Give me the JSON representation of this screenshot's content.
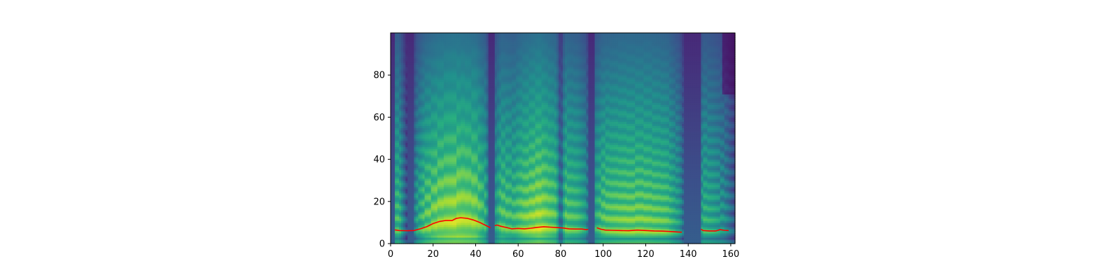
{
  "chart_data": {
    "type": "heatmap",
    "subtype": "mel-spectrogram with pitch contour overlay",
    "colormap": "viridis",
    "title": "",
    "xlabel": "",
    "ylabel": "",
    "xlim": [
      0,
      162
    ],
    "ylim": [
      0,
      100
    ],
    "x_ticks": [
      0,
      20,
      40,
      60,
      80,
      100,
      120,
      140,
      160
    ],
    "y_ticks": [
      0,
      20,
      40,
      60,
      80
    ],
    "grid": false,
    "legend": "none",
    "line_color": "#ff0000",
    "pitch_contour": [
      [
        [
          2,
          6.5
        ],
        [
          4,
          6.2
        ],
        [
          8,
          6.1
        ],
        [
          11,
          6.2
        ],
        [
          14,
          7.0
        ],
        [
          17,
          8.0
        ],
        [
          20,
          9.5
        ],
        [
          23,
          10.5
        ],
        [
          26,
          11.0
        ],
        [
          29,
          11.0
        ],
        [
          31,
          12.0
        ],
        [
          33,
          12.3
        ],
        [
          36,
          12.0
        ],
        [
          39,
          11.2
        ],
        [
          42,
          10.0
        ],
        [
          45,
          8.5
        ],
        [
          47,
          7.5
        ]
      ],
      [
        [
          49,
          8.5
        ],
        [
          50,
          8.8
        ],
        [
          52,
          8.2
        ],
        [
          55,
          7.5
        ],
        [
          57,
          7.0
        ],
        [
          60,
          7.2
        ],
        [
          63,
          7.0
        ],
        [
          66,
          7.3
        ],
        [
          69,
          7.7
        ],
        [
          72,
          8.0
        ],
        [
          75,
          7.8
        ],
        [
          78,
          7.6
        ],
        [
          81,
          7.4
        ],
        [
          84,
          7.0
        ],
        [
          87,
          6.9
        ],
        [
          90,
          6.9
        ],
        [
          92,
          6.6
        ],
        [
          93,
          6.8
        ]
      ],
      [
        [
          97,
          7.5
        ],
        [
          99,
          6.8
        ],
        [
          101,
          6.4
        ],
        [
          104,
          6.3
        ],
        [
          108,
          6.2
        ],
        [
          112,
          6.1
        ],
        [
          116,
          6.4
        ],
        [
          120,
          6.2
        ],
        [
          124,
          6.0
        ],
        [
          128,
          5.9
        ],
        [
          132,
          5.7
        ],
        [
          135,
          5.5
        ],
        [
          137,
          5.4
        ]
      ],
      [
        [
          146,
          6.8
        ],
        [
          147,
          6.2
        ],
        [
          150,
          6.0
        ],
        [
          153,
          6.0
        ],
        [
          155,
          6.6
        ],
        [
          157,
          6.3
        ],
        [
          159,
          6.2
        ]
      ]
    ],
    "spectrogram": {
      "n_frames": 162,
      "n_mels": 100,
      "silence_frames": [
        [
          0,
          1
        ],
        [
          8,
          10
        ],
        [
          46,
          48
        ],
        [
          93,
          95
        ],
        [
          138,
          145
        ]
      ],
      "energy_scale": [
        [
          0,
          0.7
        ],
        [
          4,
          0.75
        ],
        [
          8,
          0.25
        ],
        [
          10,
          0.25
        ],
        [
          12,
          0.6
        ],
        [
          16,
          0.8
        ],
        [
          22,
          0.9
        ],
        [
          30,
          0.95
        ],
        [
          40,
          0.9
        ],
        [
          45,
          0.7
        ],
        [
          47,
          0.2
        ],
        [
          49,
          0.6
        ],
        [
          52,
          0.8
        ],
        [
          58,
          0.75
        ],
        [
          62,
          0.85
        ],
        [
          70,
          0.95
        ],
        [
          78,
          0.8
        ],
        [
          80,
          0.35
        ],
        [
          82,
          0.8
        ],
        [
          88,
          0.75
        ],
        [
          92,
          0.6
        ],
        [
          94,
          0.2
        ],
        [
          96,
          0.65
        ],
        [
          100,
          0.8
        ],
        [
          110,
          0.85
        ],
        [
          120,
          0.85
        ],
        [
          130,
          0.8
        ],
        [
          136,
          0.6
        ],
        [
          139,
          0.25
        ],
        [
          144,
          0.3
        ],
        [
          147,
          0.7
        ],
        [
          152,
          0.65
        ],
        [
          157,
          0.55
        ],
        [
          160,
          0.4
        ],
        [
          162,
          0.3
        ]
      ]
    }
  }
}
